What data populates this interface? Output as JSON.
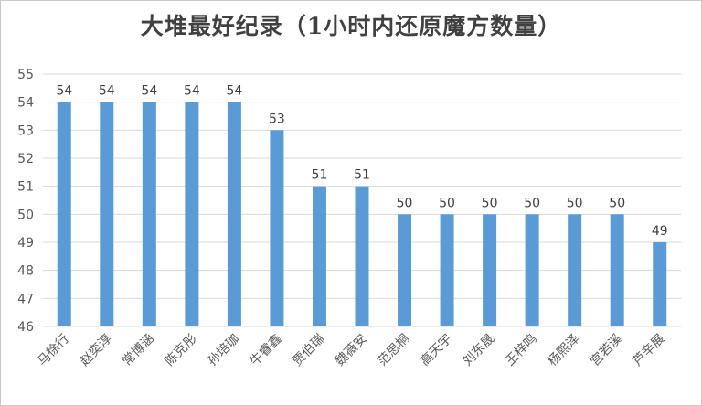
{
  "chart_data": {
    "type": "bar",
    "title": "大堆最好纪录（1小时内还原魔方数量）",
    "categories": [
      "马徐行",
      "赵奕淳",
      "常博涵",
      "陈克彤",
      "孙培珈",
      "牛睿鑫",
      "贾伯瑞",
      "魏薇安",
      "范思桐",
      "高天宇",
      "刘东晟",
      "王梓鸣",
      "杨熙泽",
      "宫若溪",
      "芦辛展"
    ],
    "values": [
      54,
      54,
      54,
      54,
      54,
      53,
      51,
      51,
      50,
      50,
      50,
      50,
      50,
      50,
      49
    ],
    "ylim": [
      46,
      55
    ],
    "yticks": [
      46,
      47,
      48,
      49,
      50,
      51,
      52,
      53,
      54,
      55
    ],
    "grid": true,
    "legend": "none",
    "bar_color": "#5b9bd5",
    "data_labels": true
  }
}
